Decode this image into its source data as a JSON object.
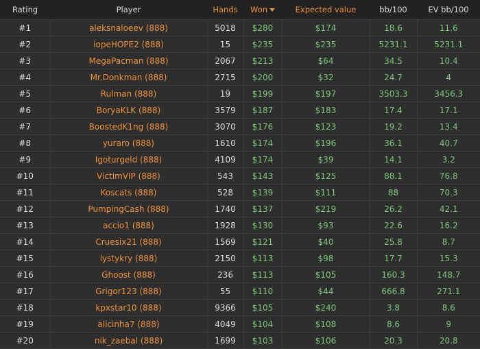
{
  "columns": {
    "rating": "Rating",
    "player": "Player",
    "hands": "Hands",
    "won": "Won",
    "ev": "Expected value",
    "bb100": "bb/100",
    "evbb100": "EV bb/100"
  },
  "sort": {
    "column": "won",
    "direction": "desc",
    "icon": "caret-down-icon"
  },
  "colors": {
    "accent": "#f0923a",
    "positive": "#7fc77a",
    "background": "#2e2e2e",
    "header": "#222222"
  },
  "rows": [
    {
      "rating": "#1",
      "player": "aleksnaloeev (888)",
      "hands": "5018",
      "won": "$280",
      "ev": "$174",
      "bb100": "18.6",
      "evbb100": "11.6"
    },
    {
      "rating": "#2",
      "player": "iopeHOPE2 (888)",
      "hands": "15",
      "won": "$235",
      "ev": "$235",
      "bb100": "5231.1",
      "evbb100": "5231.1"
    },
    {
      "rating": "#3",
      "player": "MegaPacman (888)",
      "hands": "2067",
      "won": "$213",
      "ev": "$64",
      "bb100": "34.5",
      "evbb100": "10.4"
    },
    {
      "rating": "#4",
      "player": "Mr.Donkman (888)",
      "hands": "2715",
      "won": "$200",
      "ev": "$32",
      "bb100": "24.7",
      "evbb100": "4"
    },
    {
      "rating": "#5",
      "player": "Rulman (888)",
      "hands": "19",
      "won": "$199",
      "ev": "$197",
      "bb100": "3503.3",
      "evbb100": "3456.3"
    },
    {
      "rating": "#6",
      "player": "BoryaKLK (888)",
      "hands": "3579",
      "won": "$187",
      "ev": "$183",
      "bb100": "17.4",
      "evbb100": "17.1"
    },
    {
      "rating": "#7",
      "player": "BoostedK1ng (888)",
      "hands": "3070",
      "won": "$176",
      "ev": "$123",
      "bb100": "19.2",
      "evbb100": "13.4"
    },
    {
      "rating": "#8",
      "player": "yuraro (888)",
      "hands": "1610",
      "won": "$174",
      "ev": "$196",
      "bb100": "36.1",
      "evbb100": "40.7"
    },
    {
      "rating": "#9",
      "player": "Igoturgeld (888)",
      "hands": "4109",
      "won": "$174",
      "ev": "$39",
      "bb100": "14.1",
      "evbb100": "3.2"
    },
    {
      "rating": "#10",
      "player": "VictimVIP (888)",
      "hands": "543",
      "won": "$143",
      "ev": "$125",
      "bb100": "88.1",
      "evbb100": "76.8"
    },
    {
      "rating": "#11",
      "player": "Koscats (888)",
      "hands": "528",
      "won": "$139",
      "ev": "$111",
      "bb100": "88",
      "evbb100": "70.3"
    },
    {
      "rating": "#12",
      "player": "PumpingCash (888)",
      "hands": "1740",
      "won": "$137",
      "ev": "$219",
      "bb100": "26.2",
      "evbb100": "42.1"
    },
    {
      "rating": "#13",
      "player": "accio1 (888)",
      "hands": "1928",
      "won": "$130",
      "ev": "$93",
      "bb100": "22.6",
      "evbb100": "16.2"
    },
    {
      "rating": "#14",
      "player": "Cruesix21 (888)",
      "hands": "1569",
      "won": "$121",
      "ev": "$40",
      "bb100": "25.8",
      "evbb100": "8.7"
    },
    {
      "rating": "#15",
      "player": "lystykry (888)",
      "hands": "2150",
      "won": "$113",
      "ev": "$98",
      "bb100": "17.7",
      "evbb100": "15.3"
    },
    {
      "rating": "#16",
      "player": "Ghoost (888)",
      "hands": "236",
      "won": "$113",
      "ev": "$105",
      "bb100": "160.3",
      "evbb100": "148.7"
    },
    {
      "rating": "#17",
      "player": "Grigor123 (888)",
      "hands": "55",
      "won": "$110",
      "ev": "$44",
      "bb100": "666.8",
      "evbb100": "271.1"
    },
    {
      "rating": "#18",
      "player": "kpxstar10 (888)",
      "hands": "9366",
      "won": "$105",
      "ev": "$240",
      "bb100": "3.8",
      "evbb100": "8.6"
    },
    {
      "rating": "#19",
      "player": "alicinha7 (888)",
      "hands": "4049",
      "won": "$104",
      "ev": "$108",
      "bb100": "8.6",
      "evbb100": "9"
    },
    {
      "rating": "#20",
      "player": "nik_zaebal (888)",
      "hands": "1699",
      "won": "$103",
      "ev": "$106",
      "bb100": "20.3",
      "evbb100": "20.8"
    }
  ]
}
